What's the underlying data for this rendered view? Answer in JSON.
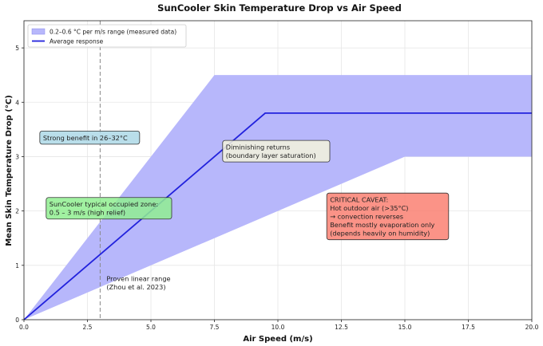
{
  "chart_data": {
    "type": "area",
    "title": "SunCooler Skin Temperature Drop vs Air Speed",
    "xlabel": "Air Speed (m/s)",
    "ylabel": "Mean Skin Temperature Drop (°C)",
    "xlim": [
      0,
      20
    ],
    "ylim": [
      0,
      5.5
    ],
    "xticks": [
      0,
      2.5,
      5,
      7.5,
      10,
      12.5,
      15,
      17.5,
      20
    ],
    "xtick_labels": [
      "0.0",
      "2.5",
      "5.0",
      "7.5",
      "10.0",
      "12.5",
      "15.0",
      "17.5",
      "20.0"
    ],
    "yticks": [
      0,
      1,
      2,
      3,
      4,
      5
    ],
    "ytick_labels": [
      "0",
      "1",
      "2",
      "3",
      "4",
      "5"
    ],
    "grid": true,
    "legend_position": "top-left",
    "colors": {
      "band": "#b7b7fb",
      "line": "#2222dd",
      "vline": "#888888"
    },
    "series": [
      {
        "name": "0.2–0.6 °C per m/s range (measured data)",
        "kind": "band",
        "x": [
          0,
          7.5,
          20
        ],
        "upper": [
          0,
          4.5,
          4.5
        ],
        "lower_x": [
          0,
          15,
          20
        ],
        "lower": [
          0,
          3.0,
          3.0
        ]
      },
      {
        "name": "Average response",
        "kind": "line",
        "x": [
          0,
          9.5,
          20
        ],
        "y": [
          0,
          3.8,
          3.8
        ]
      }
    ],
    "vline": {
      "x": 3.0
    },
    "annotations": [
      {
        "id": "strong",
        "lines": [
          "Strong benefit in 26–32°C"
        ],
        "fill": "#add8e6",
        "stroke": "#333333"
      },
      {
        "id": "diminishing",
        "lines": [
          "Diminishing returns",
          "(boundary layer saturation)"
        ],
        "fill": "#f5f5dc",
        "stroke": "#333333"
      },
      {
        "id": "typical",
        "lines": [
          "SunCooler typical occupied zone:",
          "0.5 – 3 m/s (high relief)"
        ],
        "fill": "#90ee90",
        "stroke": "#333333"
      },
      {
        "id": "caveat",
        "lines": [
          "CRITICAL CAVEAT:",
          "Hot outdoor air (>35°C)",
          "→ convection reverses",
          "Benefit mostly evaporation only",
          "(depends heavily on humidity)"
        ],
        "fill": "#fa8072",
        "stroke": "#333333"
      },
      {
        "id": "proven",
        "lines": [
          "Proven linear range",
          "(Zhou et al. 2023)"
        ],
        "fill": "none",
        "stroke": "none",
        "color": "#333399"
      }
    ]
  }
}
